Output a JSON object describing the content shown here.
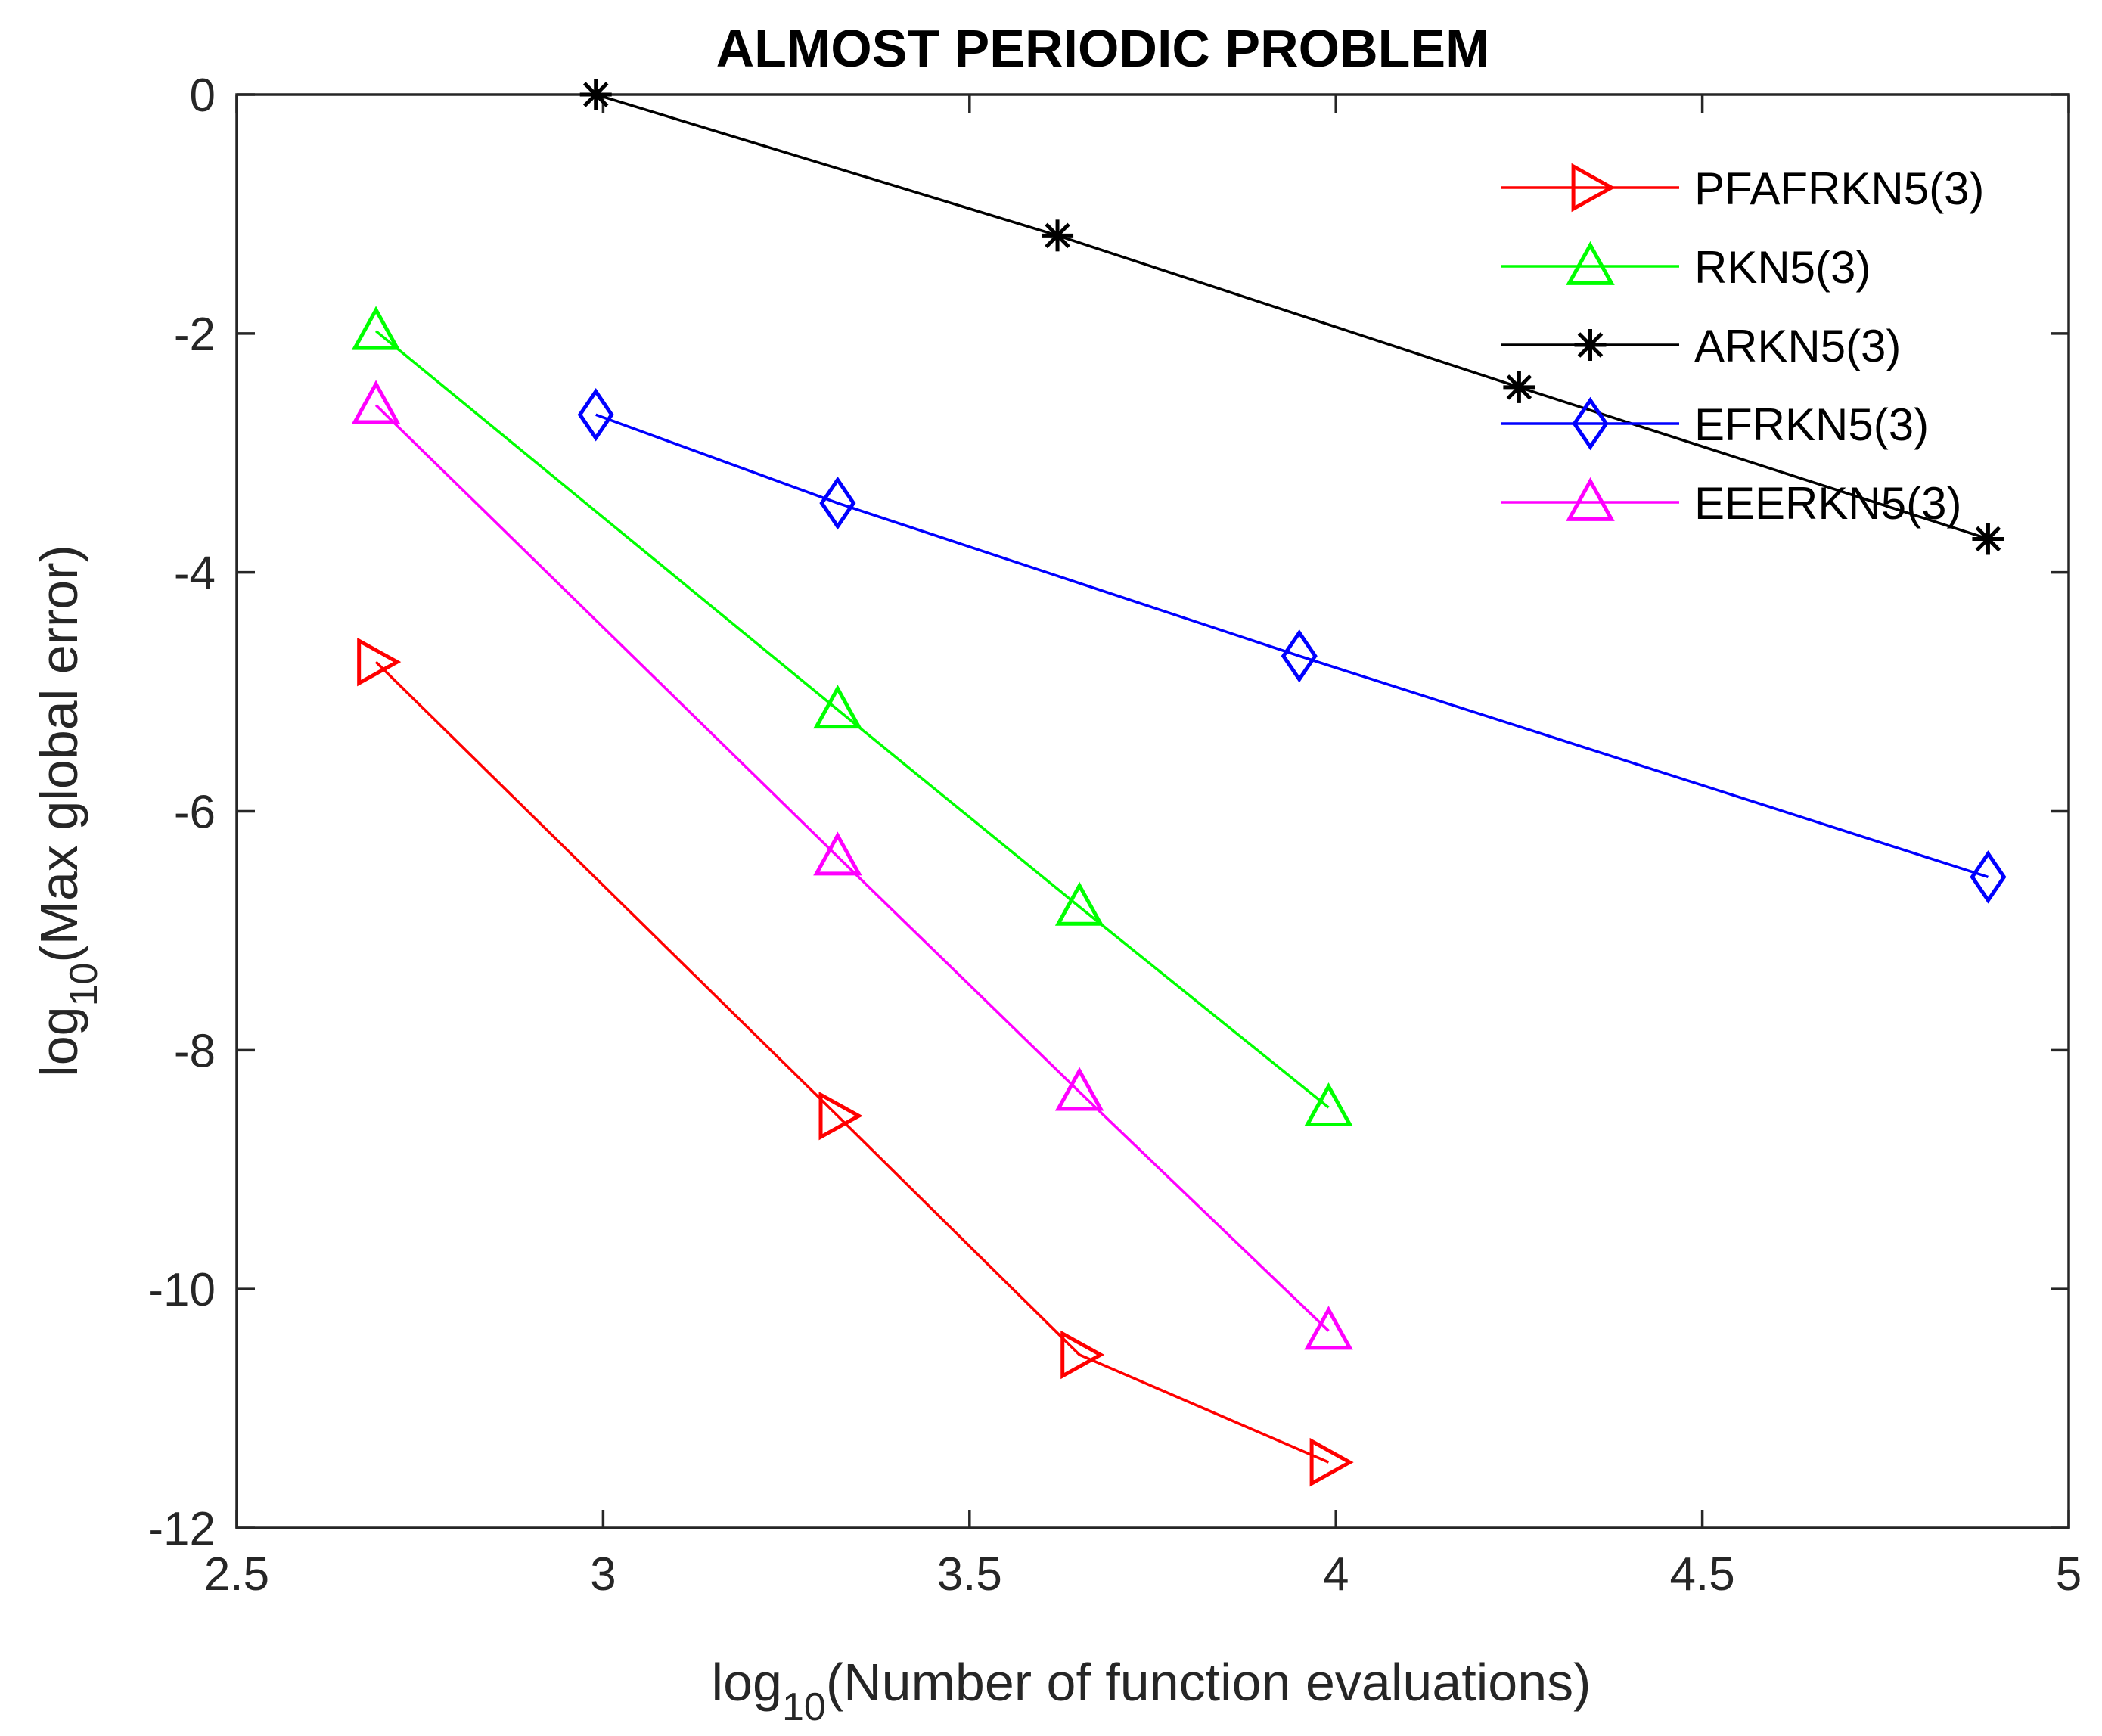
{
  "chart_data": {
    "type": "line",
    "title": "ALMOST PERIODIC PROBLEM",
    "xlabel": {
      "prefix": "log",
      "sub": "10",
      "suffix": "(Number of function evaluations)"
    },
    "ylabel": {
      "prefix": "log",
      "sub": "10",
      "suffix": "(Max global error)"
    },
    "xlim": [
      2.5,
      5
    ],
    "ylim": [
      -12,
      0
    ],
    "xticks": [
      2.5,
      3,
      3.5,
      4,
      4.5,
      5
    ],
    "xtick_labels": [
      "2.5",
      "3",
      "3.5",
      "4",
      "4.5",
      "5"
    ],
    "yticks": [
      0,
      -2,
      -4,
      -6,
      -8,
      -10,
      -12
    ],
    "ytick_labels": [
      "0",
      "-2",
      "-4",
      "-6",
      "-8",
      "-10",
      "-12"
    ],
    "legend_position": "top-right",
    "series": [
      {
        "name": "PFAFRKN5(3)",
        "color": "#ff0000",
        "marker": "triangle-right",
        "x": [
          2.69,
          3.32,
          3.65,
          3.99
        ],
        "y": [
          -4.75,
          -8.55,
          -10.55,
          -11.45
        ]
      },
      {
        "name": "RKN5(3)",
        "color": "#00ff00",
        "marker": "triangle-up",
        "x": [
          2.69,
          3.32,
          3.65,
          3.99
        ],
        "y": [
          -1.98,
          -5.15,
          -6.8,
          -8.48
        ]
      },
      {
        "name": "ARKN5(3)",
        "color": "#000000",
        "marker": "asterisk",
        "x": [
          2.99,
          3.62,
          4.25,
          4.89
        ],
        "y": [
          0.0,
          -1.18,
          -2.45,
          -3.72
        ]
      },
      {
        "name": "EFRKN5(3)",
        "color": "#0000ff",
        "marker": "diamond",
        "x": [
          2.99,
          3.32,
          3.95,
          4.89
        ],
        "y": [
          -2.68,
          -3.42,
          -4.7,
          -6.55
        ]
      },
      {
        "name": "EEERKN5(3)",
        "color": "#ff00ff",
        "marker": "triangle-up",
        "x": [
          2.69,
          3.32,
          3.65,
          3.99
        ],
        "y": [
          -2.6,
          -6.38,
          -8.35,
          -10.35
        ]
      }
    ]
  }
}
